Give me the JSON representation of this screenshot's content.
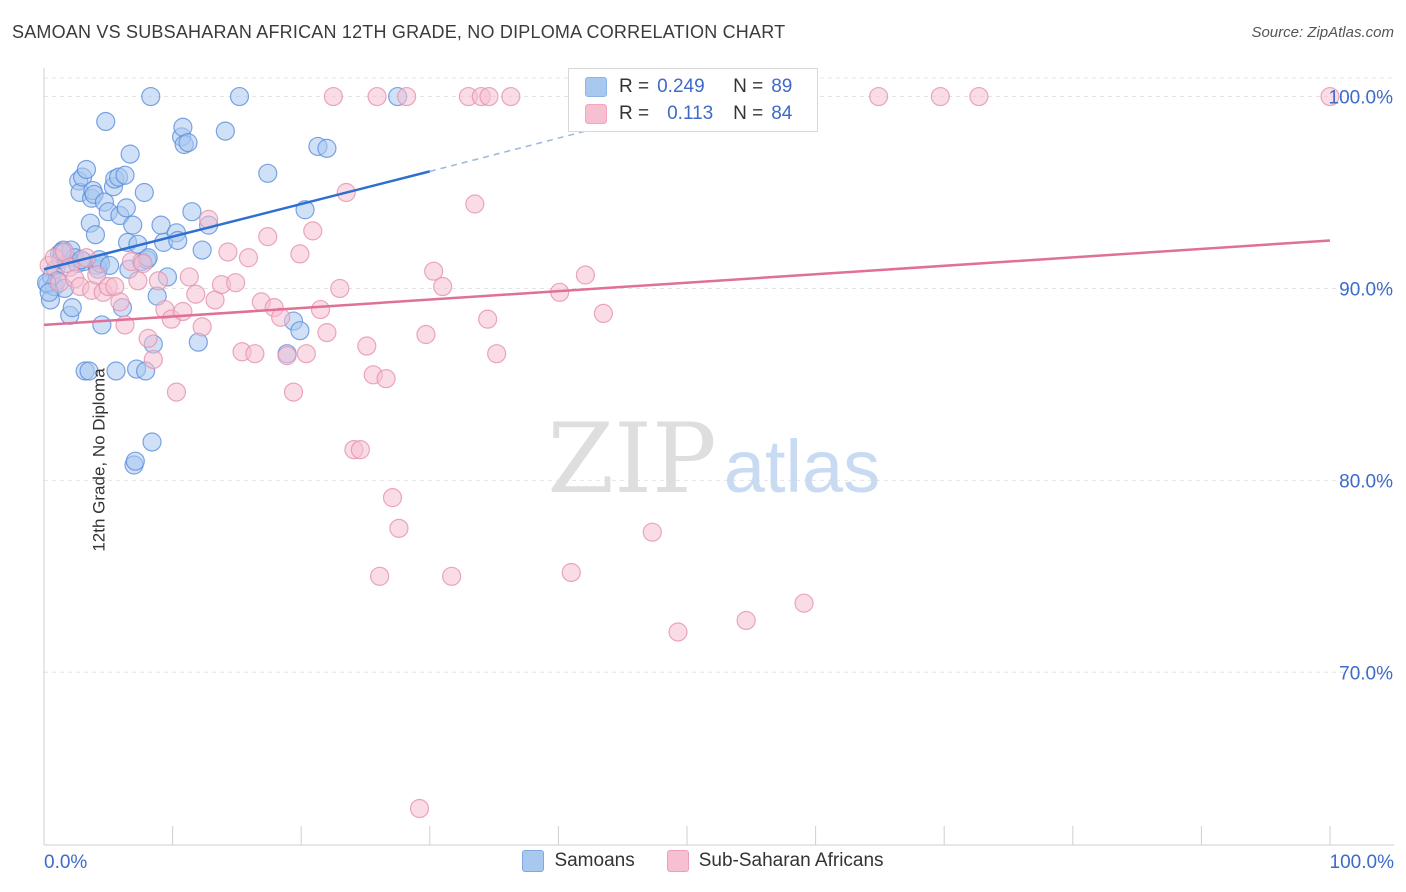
{
  "title": "SAMOAN VS SUBSAHARAN AFRICAN 12TH GRADE, NO DIPLOMA CORRELATION CHART",
  "source": "Source: ZipAtlas.com",
  "watermark": {
    "zip": "ZIP",
    "atlas": "atlas"
  },
  "legend_top": {
    "rows": [
      {
        "r_label": "R =",
        "r_value": "0.249",
        "n_label": "N =",
        "n_value": "89",
        "color": "#8ab4ea"
      },
      {
        "r_label": "R =",
        "r_value": "0.113",
        "n_label": "N =",
        "n_value": "84",
        "color": "#f4a6c0"
      }
    ]
  },
  "bottom_legend": [
    {
      "label": "Samoans",
      "color": "#a9c8f0"
    },
    {
      "label": "Sub-Saharan Africans",
      "color": "#f6bfd2"
    }
  ],
  "chart_data": {
    "type": "scatter",
    "title": "SAMOAN VS SUBSAHARAN AFRICAN 12TH GRADE, NO DIPLOMA CORRELATION CHART",
    "xlabel": "",
    "ylabel": "12th Grade, No Diploma",
    "x_tick_labels": [
      "0.0%",
      "100.0%"
    ],
    "y_tick_labels": [
      "100.0%",
      "90.0%",
      "80.0%",
      "70.0%"
    ],
    "y_ticks": [
      100,
      90,
      80,
      70
    ],
    "xlim": [
      0,
      100
    ],
    "ylim": [
      61.0,
      101.8
    ],
    "grid": true,
    "legend_placement": "bottom",
    "series": [
      {
        "name": "Samoans",
        "color": "#5b8fdc",
        "fill": "#a9c8f0",
        "trend": {
          "x0": 0,
          "y0": 91.0,
          "x1": 30,
          "y1": 96.1,
          "dash_to_x": 45,
          "dash_to_y": 98.7,
          "color": "#2f6fcf"
        },
        "points": [
          [
            0.3,
            90.2
          ],
          [
            0.5,
            89.4
          ],
          [
            0.6,
            90.6
          ],
          [
            0.8,
            90.1
          ],
          [
            0.9,
            91.0
          ],
          [
            1.0,
            90.4
          ],
          [
            1.2,
            91.8
          ],
          [
            1.3,
            91.5
          ],
          [
            1.5,
            92.0
          ],
          [
            1.6,
            90.0
          ],
          [
            1.8,
            91.3
          ],
          [
            2.0,
            88.6
          ],
          [
            2.1,
            92.0
          ],
          [
            2.2,
            89.0
          ],
          [
            2.4,
            91.6
          ],
          [
            2.6,
            91.3
          ],
          [
            2.7,
            95.6
          ],
          [
            2.8,
            95.0
          ],
          [
            3.0,
            95.8
          ],
          [
            3.1,
            91.4
          ],
          [
            3.2,
            85.7
          ],
          [
            3.3,
            96.2
          ],
          [
            3.5,
            85.7
          ],
          [
            3.6,
            93.4
          ],
          [
            3.7,
            94.7
          ],
          [
            3.8,
            95.1
          ],
          [
            3.9,
            94.9
          ],
          [
            4.0,
            92.8
          ],
          [
            4.1,
            91.2
          ],
          [
            4.2,
            91.0
          ],
          [
            4.3,
            91.5
          ],
          [
            4.4,
            91.3
          ],
          [
            4.5,
            88.1
          ],
          [
            4.7,
            94.5
          ],
          [
            4.8,
            98.7
          ],
          [
            5.0,
            94.0
          ],
          [
            5.1,
            91.2
          ],
          [
            5.4,
            95.3
          ],
          [
            5.5,
            95.7
          ],
          [
            5.6,
            85.7
          ],
          [
            5.8,
            95.8
          ],
          [
            5.9,
            93.8
          ],
          [
            6.1,
            89.0
          ],
          [
            6.3,
            95.9
          ],
          [
            6.4,
            94.2
          ],
          [
            6.5,
            92.4
          ],
          [
            6.6,
            91.0
          ],
          [
            6.7,
            97.0
          ],
          [
            6.9,
            93.3
          ],
          [
            7.0,
            80.8
          ],
          [
            7.1,
            81.0
          ],
          [
            7.2,
            85.8
          ],
          [
            7.3,
            92.3
          ],
          [
            7.6,
            91.4
          ],
          [
            7.8,
            95.0
          ],
          [
            7.9,
            85.7
          ],
          [
            8.0,
            91.5
          ],
          [
            8.1,
            91.6
          ],
          [
            8.3,
            100.0
          ],
          [
            8.4,
            82.0
          ],
          [
            8.5,
            87.1
          ],
          [
            8.8,
            89.6
          ],
          [
            9.1,
            93.3
          ],
          [
            9.3,
            92.4
          ],
          [
            9.6,
            90.6
          ],
          [
            10.3,
            92.9
          ],
          [
            10.4,
            92.5
          ],
          [
            10.7,
            97.9
          ],
          [
            10.8,
            98.4
          ],
          [
            10.9,
            97.5
          ],
          [
            11.2,
            97.6
          ],
          [
            11.5,
            94.0
          ],
          [
            12.0,
            87.2
          ],
          [
            12.3,
            92.0
          ],
          [
            12.8,
            93.3
          ],
          [
            14.1,
            98.2
          ],
          [
            15.2,
            100.0
          ],
          [
            17.4,
            96.0
          ],
          [
            18.9,
            86.6
          ],
          [
            19.4,
            88.3
          ],
          [
            19.9,
            87.8
          ],
          [
            20.3,
            94.1
          ],
          [
            21.3,
            97.4
          ],
          [
            22.0,
            97.3
          ],
          [
            27.5,
            100.0
          ],
          [
            0.2,
            90.3
          ],
          [
            0.4,
            89.8
          ],
          [
            1.4,
            91.9
          ],
          [
            2.9,
            91.5
          ]
        ]
      },
      {
        "name": "Sub-Saharan Africans",
        "color": "#e592ad",
        "fill": "#f6bfd2",
        "trend": {
          "x0": 0,
          "y0": 88.1,
          "x1": 100,
          "y1": 92.5,
          "color": "#e07095"
        },
        "points": [
          [
            0.4,
            91.2
          ],
          [
            0.8,
            91.6
          ],
          [
            1.2,
            90.3
          ],
          [
            1.6,
            91.9
          ],
          [
            2.0,
            91.1
          ],
          [
            2.4,
            90.5
          ],
          [
            2.8,
            90.1
          ],
          [
            3.3,
            91.6
          ],
          [
            3.7,
            89.9
          ],
          [
            4.1,
            90.7
          ],
          [
            4.6,
            89.8
          ],
          [
            5.0,
            90.1
          ],
          [
            5.5,
            90.1
          ],
          [
            5.9,
            89.3
          ],
          [
            6.3,
            88.1
          ],
          [
            6.8,
            91.4
          ],
          [
            7.3,
            90.4
          ],
          [
            7.7,
            91.3
          ],
          [
            8.1,
            87.4
          ],
          [
            8.5,
            86.3
          ],
          [
            8.9,
            90.4
          ],
          [
            9.4,
            88.9
          ],
          [
            9.9,
            88.4
          ],
          [
            10.3,
            84.6
          ],
          [
            10.8,
            88.8
          ],
          [
            11.3,
            90.6
          ],
          [
            11.8,
            89.7
          ],
          [
            12.3,
            88.0
          ],
          [
            12.8,
            93.6
          ],
          [
            13.3,
            89.4
          ],
          [
            13.8,
            90.2
          ],
          [
            14.3,
            91.9
          ],
          [
            14.9,
            90.3
          ],
          [
            15.4,
            86.7
          ],
          [
            15.9,
            91.6
          ],
          [
            16.4,
            86.6
          ],
          [
            16.9,
            89.3
          ],
          [
            17.4,
            92.7
          ],
          [
            17.9,
            89.0
          ],
          [
            18.4,
            88.5
          ],
          [
            18.9,
            86.5
          ],
          [
            19.4,
            84.6
          ],
          [
            19.9,
            91.8
          ],
          [
            20.4,
            86.6
          ],
          [
            20.9,
            93.0
          ],
          [
            21.5,
            88.9
          ],
          [
            22.0,
            87.7
          ],
          [
            22.5,
            100.0
          ],
          [
            23.0,
            90.0
          ],
          [
            23.5,
            95.0
          ],
          [
            24.1,
            81.6
          ],
          [
            24.6,
            81.6
          ],
          [
            25.1,
            87.0
          ],
          [
            25.6,
            85.5
          ],
          [
            26.1,
            75.0
          ],
          [
            26.6,
            85.3
          ],
          [
            27.1,
            79.1
          ],
          [
            27.6,
            77.5
          ],
          [
            28.2,
            100.0
          ],
          [
            29.2,
            62.9
          ],
          [
            29.7,
            87.6
          ],
          [
            30.3,
            90.9
          ],
          [
            31.0,
            90.1
          ],
          [
            31.7,
            75.0
          ],
          [
            33.0,
            100.0
          ],
          [
            33.5,
            94.4
          ],
          [
            34.0,
            100.0
          ],
          [
            34.5,
            88.4
          ],
          [
            35.2,
            86.6
          ],
          [
            36.3,
            100.0
          ],
          [
            40.1,
            89.8
          ],
          [
            41.0,
            75.2
          ],
          [
            42.1,
            90.7
          ],
          [
            43.5,
            88.7
          ],
          [
            47.3,
            77.3
          ],
          [
            49.3,
            72.1
          ],
          [
            54.6,
            72.7
          ],
          [
            59.1,
            73.6
          ],
          [
            64.9,
            100.0
          ],
          [
            69.7,
            100.0
          ],
          [
            72.7,
            100.0
          ],
          [
            100.0,
            100.0
          ],
          [
            25.9,
            100.0
          ],
          [
            34.6,
            100.0
          ]
        ]
      }
    ]
  }
}
